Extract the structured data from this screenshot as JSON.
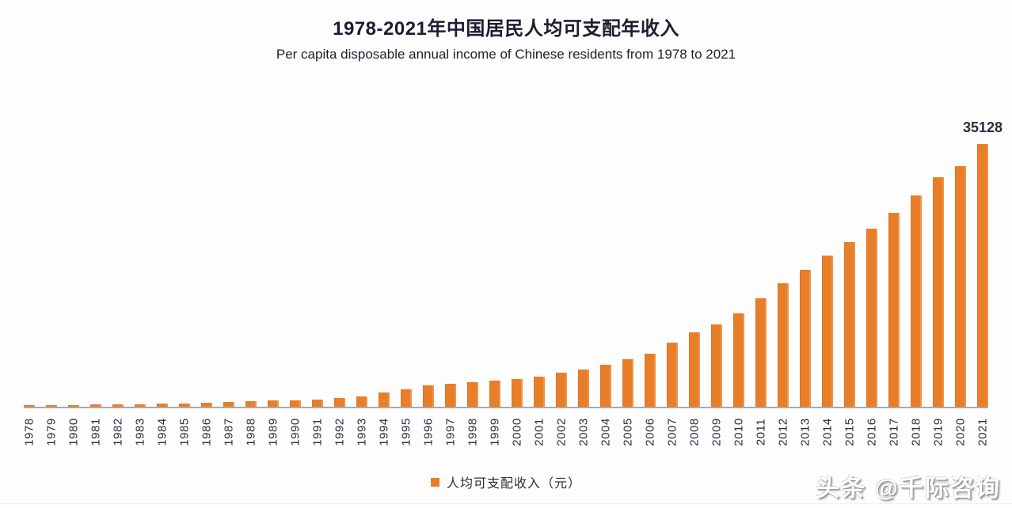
{
  "chart": {
    "title": "1978-2021年中国居民人均可支配年收入",
    "subtitle": "Per capita disposable annual income of Chinese residents from 1978 to 2021",
    "legend_label": "人均可支配收入（元）",
    "value_label": "35128"
  },
  "watermark": {
    "text": "头条 @千际咨询"
  },
  "colors": {
    "bar": "#E97E28",
    "axis_line": "#A9A9AB",
    "title_text": "#1D1D30",
    "tick_text": "#2C2C3E",
    "value_label_text": "#2B2B40"
  },
  "chart_data": {
    "type": "bar",
    "title": "1978-2021年中国居民人均可支配年收入",
    "subtitle": "Per capita disposable annual income of Chinese residents from 1978 to 2021",
    "legend": [
      "人均可支配收入（元）"
    ],
    "legend_position": "bottom",
    "grid": false,
    "y_axis_visible": false,
    "x_tick_rotation": -90,
    "ylim": [
      0,
      36000
    ],
    "categories": [
      "1978",
      "1979",
      "1980",
      "1981",
      "1982",
      "1983",
      "1984",
      "1985",
      "1986",
      "1987",
      "1988",
      "1989",
      "1990",
      "1991",
      "1992",
      "1993",
      "1994",
      "1995",
      "1996",
      "1997",
      "1998",
      "1999",
      "2000",
      "2001",
      "2002",
      "2003",
      "2004",
      "2005",
      "2006",
      "2007",
      "2008",
      "2009",
      "2010",
      "2011",
      "2012",
      "2013",
      "2014",
      "2015",
      "2016",
      "2017",
      "2018",
      "2019",
      "2020",
      "2021"
    ],
    "values": [
      171,
      210,
      247,
      279,
      326,
      365,
      424,
      478,
      541,
      599,
      709,
      804,
      904,
      975,
      1126,
      1385,
      1869,
      2363,
      2814,
      3070,
      3251,
      3479,
      3721,
      4058,
      4519,
      4993,
      5592,
      6385,
      7119,
      8566,
      9940,
      10958,
      12520,
      14551,
      16510,
      18311,
      20167,
      21966,
      23821,
      25974,
      28228,
      30733,
      32189,
      35128
    ],
    "annotated_point": {
      "category": "2021",
      "label": "35128"
    }
  }
}
